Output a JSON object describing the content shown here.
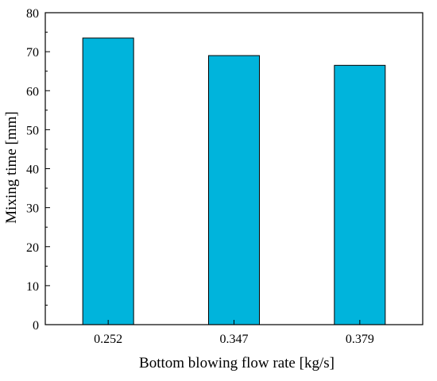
{
  "chart_data": {
    "type": "bar",
    "title": "",
    "xlabel": "Bottom blowing flow rate [kg/s]",
    "ylabel": "Mixing time [mm]",
    "categories": [
      "0.252",
      "0.347",
      "0.379"
    ],
    "values": [
      73.5,
      69.0,
      66.5
    ],
    "ylim": [
      0,
      80
    ],
    "yticks": [
      "0",
      "10",
      "20",
      "30",
      "40",
      "50",
      "60",
      "70",
      "80"
    ],
    "grid": false,
    "legend": "none",
    "colors": {
      "bar_fill": "#00b4dc",
      "bar_stroke": "#000000",
      "axis": "#000000",
      "background": "#ffffff"
    }
  }
}
